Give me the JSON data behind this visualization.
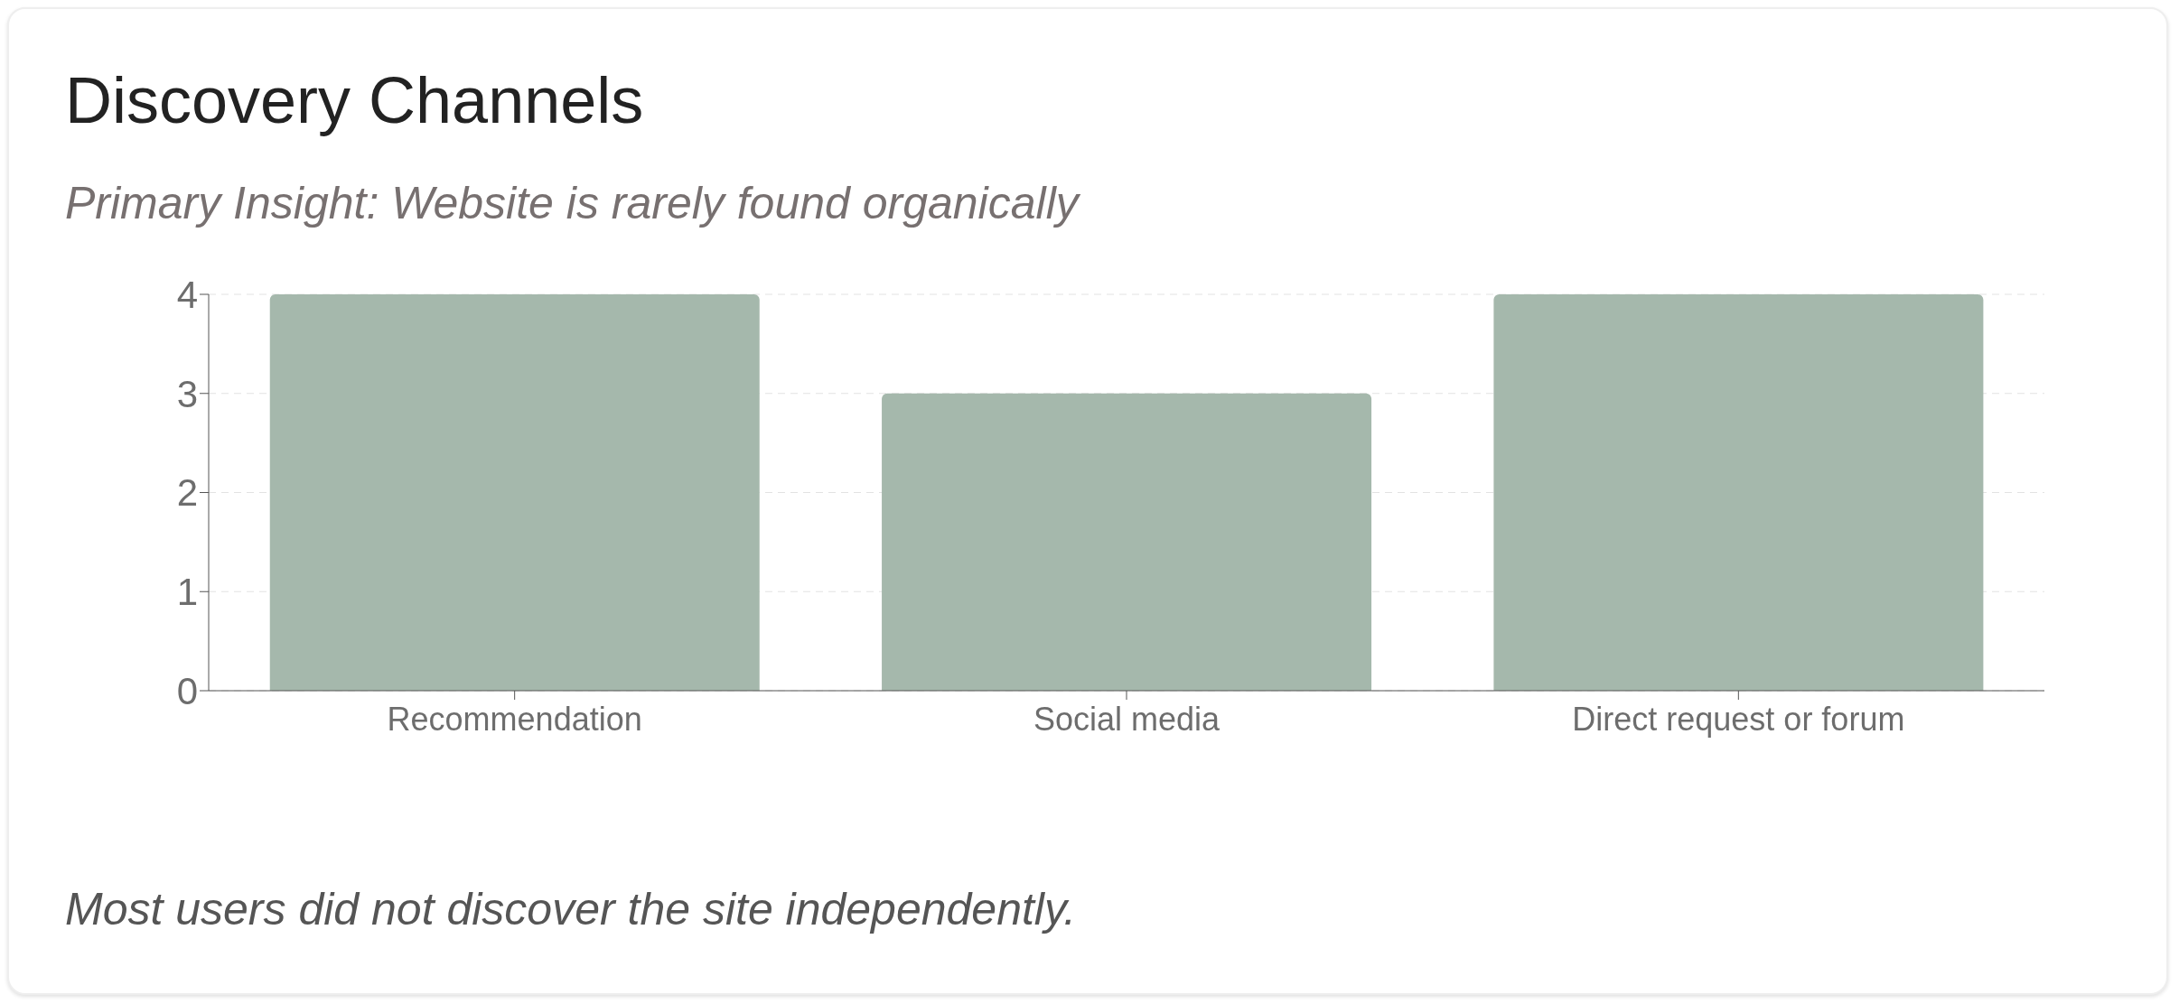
{
  "chart_data": {
    "type": "bar",
    "title": "Discovery Channels",
    "subtitle": "Primary Insight: Website is rarely found organically",
    "categories": [
      "Recommendation",
      "Social media",
      "Direct request or forum"
    ],
    "values": [
      4,
      3,
      4
    ],
    "color": "#a5b8ac",
    "ylim": [
      0,
      4
    ],
    "yticks": [
      0,
      1,
      2,
      3,
      4
    ],
    "grid": "y",
    "annotations": [
      "Most users did not discover the site independently."
    ]
  }
}
